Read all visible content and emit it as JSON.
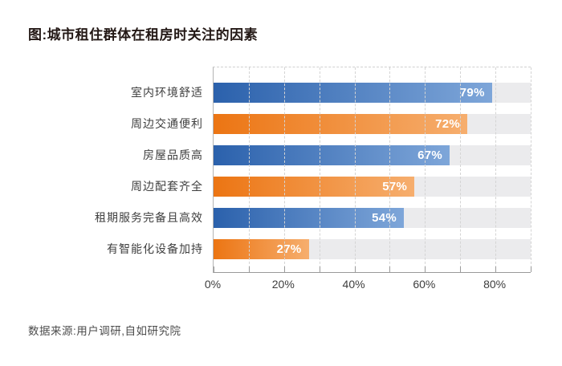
{
  "title": "图:城市租住群体在租房时关注的因素",
  "source": "数据来源:用户调研,自如研究院",
  "palette": {
    "blue": {
      "start": "#2b61ac",
      "end": "#7ea6d9"
    },
    "orange": {
      "start": "#ec7513",
      "end": "#f6ae6e"
    }
  },
  "chart_data": {
    "type": "bar",
    "orientation": "horizontal",
    "title": "图:城市租住群体在租房时关注的因素",
    "categories": [
      "室内环境舒适",
      "周边交通便利",
      "房屋品质高",
      "周边配套齐全",
      "租期服务完备且高效",
      "有智能化设备加持"
    ],
    "values": [
      79,
      72,
      67,
      57,
      54,
      27
    ],
    "value_labels": [
      "79%",
      "72%",
      "67%",
      "57%",
      "54%",
      "27%"
    ],
    "bar_palette": [
      "blue",
      "orange",
      "blue",
      "orange",
      "blue",
      "orange"
    ],
    "xlabel": "",
    "ylabel": "",
    "xlim": [
      0,
      90
    ],
    "x_ticks": [
      0,
      10,
      20,
      30,
      40,
      50,
      60,
      70,
      80,
      90
    ],
    "x_tick_labels": [
      {
        "pos": 0,
        "label": "0%"
      },
      {
        "pos": 20,
        "label": "20%"
      },
      {
        "pos": 40,
        "label": "40%"
      },
      {
        "pos": 60,
        "label": "60%"
      },
      {
        "pos": 80,
        "label": "80%"
      }
    ],
    "grid": "vertical-dashed",
    "legend": "none",
    "track_color": "#ebebed",
    "value_label_color": "#ffffff"
  }
}
